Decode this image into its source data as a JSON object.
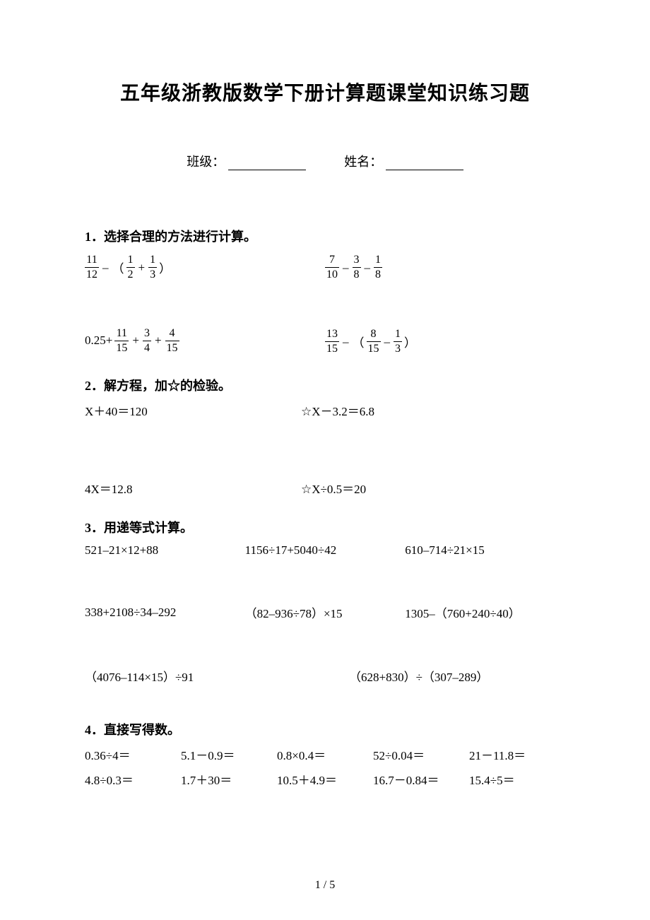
{
  "title": "五年级浙教版数学下册计算题课堂知识练习题",
  "meta": {
    "class_label": "班级：",
    "name_label": "姓名："
  },
  "s1": {
    "heading": "1．选择合理的方法进行计算。",
    "r1": {
      "a": {
        "f1n": "11",
        "f1d": "12",
        "op1": "–",
        "lp": "（",
        "f2n": "1",
        "f2d": "2",
        "op2": "+",
        "f3n": "1",
        "f3d": "3",
        "rp": "）"
      },
      "b": {
        "f1n": "7",
        "f1d": "10",
        "op1": "–",
        "f2n": "3",
        "f2d": "8",
        "op2": "–",
        "f3n": "1",
        "f3d": "8"
      }
    },
    "r2": {
      "a": {
        "pre": "0.25+",
        "f1n": "11",
        "f1d": "15",
        "op1": "+",
        "f2n": "3",
        "f2d": "4",
        "op2": "+",
        "f3n": "4",
        "f3d": "15"
      },
      "b": {
        "f1n": "13",
        "f1d": "15",
        "op1": "–",
        "lp": "（",
        "f2n": "8",
        "f2d": "15",
        "op2": "–",
        "f3n": "1",
        "f3d": "3",
        "rp": "）"
      }
    }
  },
  "s2": {
    "heading": "2．解方程，加☆的检验。",
    "r1": {
      "a": "X＋40＝120",
      "b": "☆X－3.2＝6.8"
    },
    "r2": {
      "a": "4X＝12.8",
      "b": "☆X÷0.5＝20"
    }
  },
  "s3": {
    "heading": "3．用递等式计算。",
    "r1": {
      "a": "521–21×12+88",
      "b": "1156÷17+5040÷42",
      "c": "610–714÷21×15"
    },
    "r2": {
      "a": "338+2108÷34–292",
      "b": "（82–936÷78）×15",
      "c": "1305–（760+240÷40）"
    },
    "r3": {
      "a": "（4076–114×15）÷91",
      "b": "（628+830）÷（307–289）"
    }
  },
  "s4": {
    "heading": "4．直接写得数。",
    "r1": {
      "a": "0.36÷4＝",
      "b": "5.1－0.9＝",
      "c": "0.8×0.4＝",
      "d": "52÷0.04＝",
      "e": "21－11.8＝"
    },
    "r2": {
      "a": "4.8÷0.3＝",
      "b": "1.7＋30＝",
      "c": "10.5＋4.9＝",
      "d": "16.7－0.84＝",
      "e": "15.4÷5＝"
    }
  },
  "page_num": "1 / 5"
}
